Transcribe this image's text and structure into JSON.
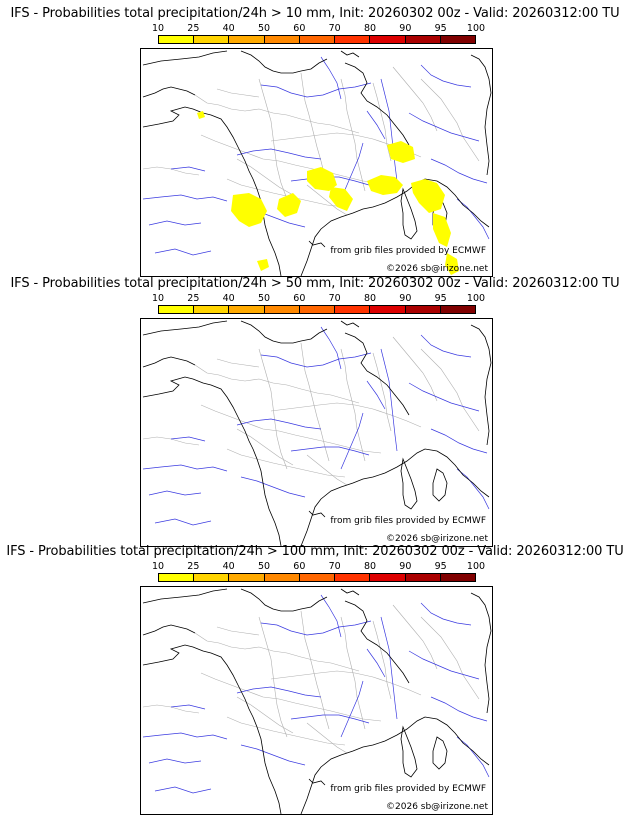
{
  "panels": [
    {
      "title": "IFS - Probabilities total precipitation/24h > 10 mm, Init: 20260302 00z - Valid: 20260312:00 TU",
      "threshold": "10 mm",
      "has_precip": true
    },
    {
      "title": "IFS - Probabilities total precipitation/24h > 50 mm, Init: 20260302 00z - Valid: 20260312:00 TU",
      "threshold": "50 mm",
      "has_precip": false
    },
    {
      "title": "IFS - Probabilities total precipitation/24h > 100 mm, Init: 20260302 00z - Valid: 20260312:00 TU",
      "threshold": "100 mm",
      "has_precip": false
    }
  ],
  "legend": {
    "ticks": [
      "10",
      "25",
      "40",
      "50",
      "60",
      "70",
      "80",
      "90",
      "95",
      "100"
    ],
    "colors": [
      "#ffff00",
      "#ffd400",
      "#ffaa00",
      "#ff8800",
      "#ff6600",
      "#ff3300",
      "#dd0000",
      "#aa0000",
      "#800000"
    ]
  },
  "credits": {
    "source": "from grib files provided by ECMWF",
    "copyright": "©2026 sb@irizone.net"
  },
  "map_colors": {
    "coast": "#000000",
    "rivers": "#3a3ae0",
    "borders": "#b0b0b0",
    "precip": "#ffff00"
  }
}
